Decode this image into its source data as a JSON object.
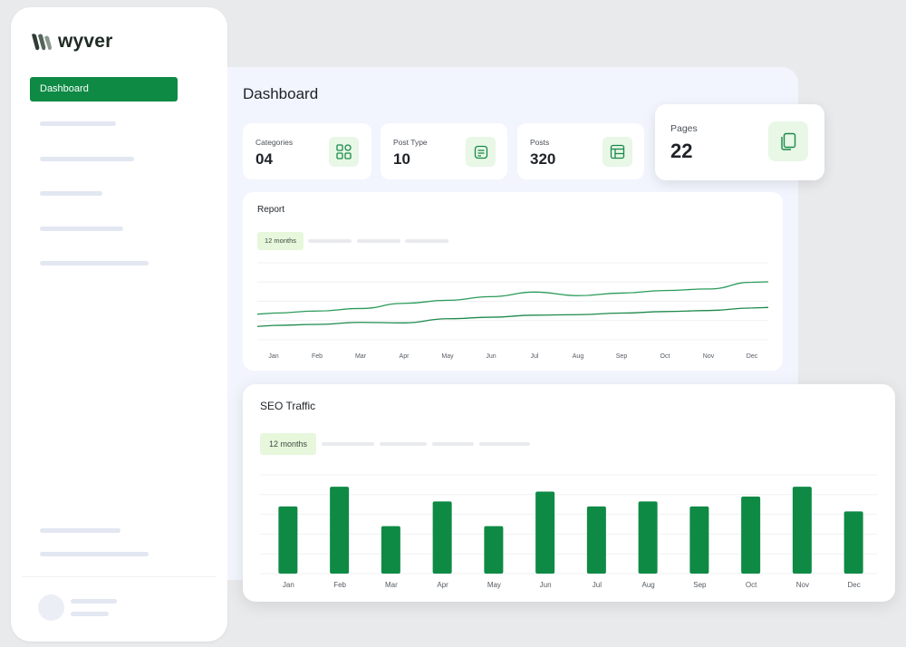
{
  "app": {
    "name": "wyver"
  },
  "sidebar": {
    "active_item": "Dashboard"
  },
  "header": {
    "title": "Dashboard"
  },
  "stats": [
    {
      "label": "Categories",
      "value": "04",
      "icon": "grid-icon"
    },
    {
      "label": "Post Type",
      "value": "10",
      "icon": "document-icon"
    },
    {
      "label": "Posts",
      "value": "320",
      "icon": "layout-icon"
    },
    {
      "label": "Pages",
      "value": "22",
      "icon": "copy-icon"
    }
  ],
  "report": {
    "title": "Report",
    "filter_chip": "12 months"
  },
  "seo": {
    "title": "SEO Traffic",
    "filter_chip": "12 months"
  },
  "colors": {
    "accent": "#0e8a45",
    "chip_bg": "#e6f7dc"
  },
  "chart_data": [
    {
      "type": "line",
      "title": "Report",
      "categories": [
        "Jan",
        "Feb",
        "Mar",
        "Apr",
        "May",
        "Jun",
        "Jul",
        "Aug",
        "Sep",
        "Oct",
        "Nov",
        "Dec"
      ],
      "series": [
        {
          "values": [
            52,
            56,
            61,
            71,
            77,
            84,
            93,
            86,
            91,
            96,
            99,
            112
          ]
        },
        {
          "values": [
            28,
            30,
            34,
            33,
            41,
            44,
            48,
            49,
            52,
            55,
            57,
            62
          ]
        }
      ],
      "ylim": [
        0,
        150
      ],
      "grid": true
    },
    {
      "type": "bar",
      "title": "SEO Traffic",
      "categories": [
        "Jan",
        "Feb",
        "Mar",
        "Apr",
        "May",
        "Jun",
        "Jul",
        "Aug",
        "Sep",
        "Oct",
        "Nov",
        "Dec"
      ],
      "values": [
        68,
        88,
        48,
        73,
        48,
        83,
        68,
        73,
        68,
        78,
        88,
        63
      ],
      "ylim": [
        0,
        100
      ],
      "grid": true
    }
  ]
}
